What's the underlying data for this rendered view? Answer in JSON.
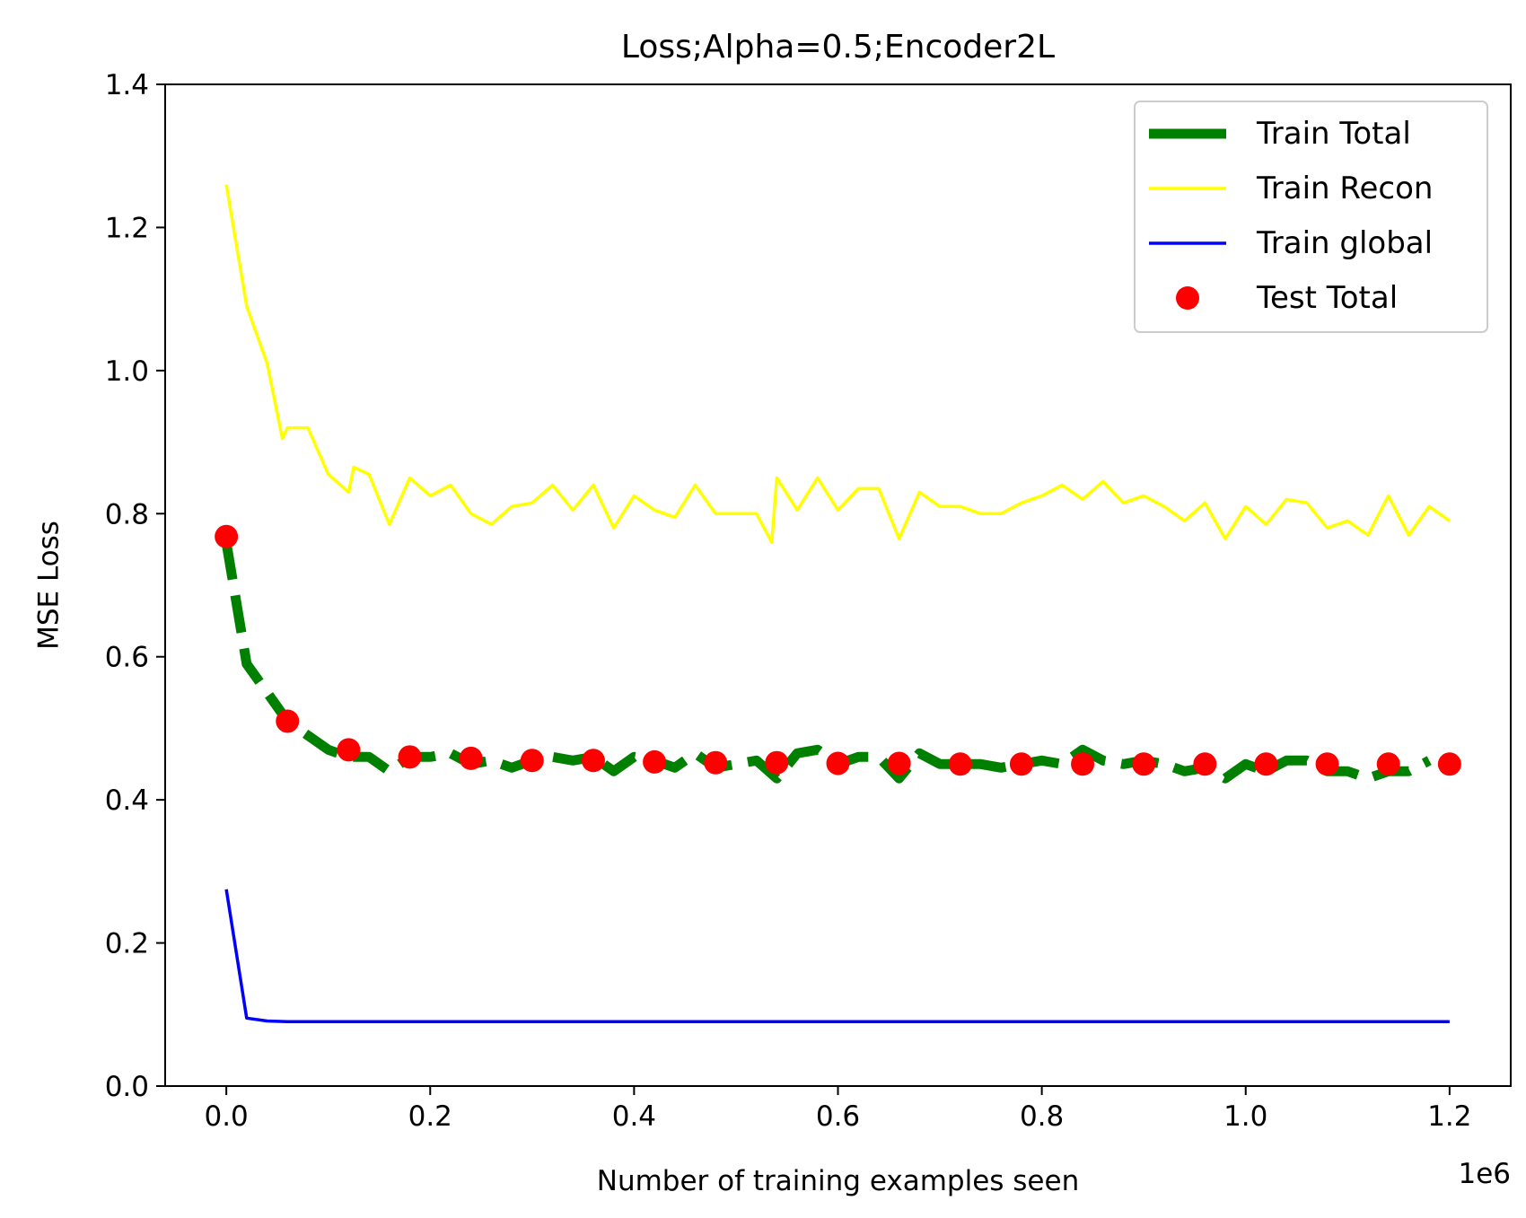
{
  "chart_data": {
    "type": "line",
    "title": "Loss;Alpha=0.5;Encoder2L",
    "xlabel": "Number of training examples seen",
    "ylabel": "MSE Loss",
    "x_offset_label": "1e6",
    "xlim": [
      -0.06,
      1.26
    ],
    "ylim": [
      0.0,
      1.4
    ],
    "x_ticks": [
      {
        "value": 0.0,
        "label": "0.0"
      },
      {
        "value": 0.2,
        "label": "0.2"
      },
      {
        "value": 0.4,
        "label": "0.4"
      },
      {
        "value": 0.6,
        "label": "0.6"
      },
      {
        "value": 0.8,
        "label": "0.8"
      },
      {
        "value": 1.0,
        "label": "1.0"
      },
      {
        "value": 1.2,
        "label": "1.2"
      }
    ],
    "y_ticks": [
      {
        "value": 0.0,
        "label": "0.0"
      },
      {
        "value": 0.2,
        "label": "0.2"
      },
      {
        "value": 0.4,
        "label": "0.4"
      },
      {
        "value": 0.6,
        "label": "0.6"
      },
      {
        "value": 0.8,
        "label": "0.8"
      },
      {
        "value": 1.0,
        "label": "1.0"
      },
      {
        "value": 1.2,
        "label": "1.2"
      },
      {
        "value": 1.4,
        "label": "1.4"
      }
    ],
    "grid": false,
    "legend_position": "top-right",
    "series": [
      {
        "name": "Train Total",
        "kind": "line",
        "style": "dashed",
        "color": "#008000",
        "x": [
          0.0,
          0.02,
          0.04,
          0.06,
          0.08,
          0.1,
          0.12,
          0.14,
          0.16,
          0.18,
          0.2,
          0.22,
          0.24,
          0.26,
          0.28,
          0.3,
          0.32,
          0.34,
          0.36,
          0.38,
          0.4,
          0.42,
          0.44,
          0.46,
          0.48,
          0.5,
          0.52,
          0.54,
          0.56,
          0.58,
          0.6,
          0.62,
          0.64,
          0.66,
          0.68,
          0.7,
          0.72,
          0.74,
          0.76,
          0.78,
          0.8,
          0.82,
          0.84,
          0.86,
          0.88,
          0.9,
          0.92,
          0.94,
          0.96,
          0.98,
          1.0,
          1.02,
          1.04,
          1.06,
          1.08,
          1.1,
          1.12,
          1.14,
          1.16,
          1.18
        ],
        "y": [
          0.76,
          0.59,
          0.55,
          0.51,
          0.49,
          0.47,
          0.46,
          0.46,
          0.44,
          0.46,
          0.46,
          0.465,
          0.45,
          0.455,
          0.445,
          0.455,
          0.46,
          0.455,
          0.46,
          0.44,
          0.46,
          0.455,
          0.445,
          0.465,
          0.445,
          0.45,
          0.455,
          0.43,
          0.465,
          0.47,
          0.45,
          0.46,
          0.46,
          0.43,
          0.465,
          0.45,
          0.45,
          0.45,
          0.445,
          0.45,
          0.455,
          0.45,
          0.47,
          0.455,
          0.45,
          0.455,
          0.45,
          0.44,
          0.445,
          0.43,
          0.45,
          0.44,
          0.455,
          0.455,
          0.44,
          0.44,
          0.43,
          0.44,
          0.44,
          0.455
        ]
      },
      {
        "name": "Train Recon",
        "kind": "line",
        "style": "solid",
        "color": "#ffff00",
        "x": [
          0.0,
          0.02,
          0.04,
          0.055,
          0.06,
          0.08,
          0.1,
          0.12,
          0.125,
          0.14,
          0.16,
          0.18,
          0.2,
          0.22,
          0.24,
          0.26,
          0.28,
          0.3,
          0.32,
          0.34,
          0.36,
          0.38,
          0.4,
          0.42,
          0.44,
          0.46,
          0.48,
          0.5,
          0.52,
          0.535,
          0.54,
          0.56,
          0.58,
          0.6,
          0.62,
          0.64,
          0.66,
          0.68,
          0.7,
          0.72,
          0.74,
          0.76,
          0.78,
          0.8,
          0.82,
          0.84,
          0.86,
          0.88,
          0.9,
          0.92,
          0.94,
          0.96,
          0.98,
          1.0,
          1.02,
          1.04,
          1.06,
          1.08,
          1.1,
          1.12,
          1.14,
          1.16,
          1.18,
          1.2
        ],
        "y": [
          1.26,
          1.09,
          1.01,
          0.905,
          0.92,
          0.92,
          0.855,
          0.83,
          0.865,
          0.855,
          0.785,
          0.85,
          0.825,
          0.84,
          0.8,
          0.785,
          0.81,
          0.815,
          0.84,
          0.805,
          0.84,
          0.78,
          0.825,
          0.805,
          0.795,
          0.84,
          0.8,
          0.8,
          0.8,
          0.76,
          0.85,
          0.805,
          0.85,
          0.805,
          0.835,
          0.835,
          0.765,
          0.83,
          0.81,
          0.81,
          0.8,
          0.8,
          0.815,
          0.825,
          0.84,
          0.82,
          0.845,
          0.815,
          0.825,
          0.81,
          0.79,
          0.815,
          0.765,
          0.81,
          0.785,
          0.82,
          0.815,
          0.78,
          0.79,
          0.77,
          0.825,
          0.77,
          0.81,
          0.79
        ]
      },
      {
        "name": "Train global",
        "kind": "line",
        "style": "solid",
        "color": "#0000ff",
        "x": [
          0.0,
          0.02,
          0.04,
          0.06,
          0.08,
          0.1,
          0.2,
          0.3,
          0.4,
          0.5,
          0.6,
          0.7,
          0.8,
          0.9,
          1.0,
          1.1,
          1.2
        ],
        "y": [
          0.275,
          0.095,
          0.091,
          0.09,
          0.09,
          0.09,
          0.09,
          0.09,
          0.09,
          0.09,
          0.09,
          0.09,
          0.09,
          0.09,
          0.09,
          0.09,
          0.09
        ]
      },
      {
        "name": "Test Total",
        "kind": "scatter",
        "color": "#ff0000",
        "x": [
          0.0,
          0.06,
          0.12,
          0.18,
          0.24,
          0.3,
          0.36,
          0.42,
          0.48,
          0.54,
          0.6,
          0.66,
          0.72,
          0.78,
          0.84,
          0.9,
          0.96,
          1.02,
          1.08,
          1.14,
          1.2
        ],
        "y": [
          0.768,
          0.51,
          0.47,
          0.46,
          0.458,
          0.455,
          0.455,
          0.453,
          0.452,
          0.452,
          0.451,
          0.451,
          0.45,
          0.45,
          0.45,
          0.45,
          0.45,
          0.45,
          0.45,
          0.45,
          0.45
        ]
      }
    ]
  }
}
